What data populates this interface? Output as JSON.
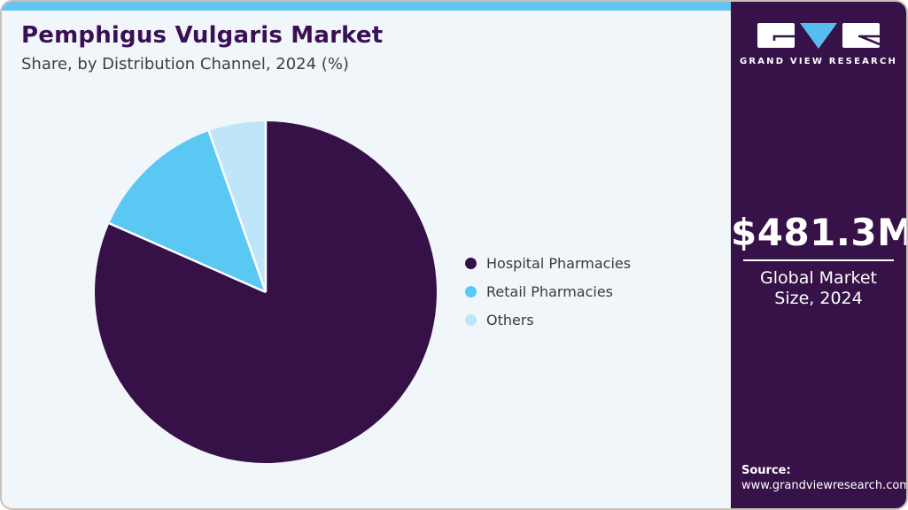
{
  "header": {
    "title": "Pemphigus Vulgaris Market",
    "subtitle": "Share, by Distribution Channel, 2024 (%)"
  },
  "chart_data": {
    "type": "pie",
    "title": "Pemphigus Vulgaris Market Share, by Distribution Channel, 2024 (%)",
    "categories": [
      "Hospital Pharmacies",
      "Retail Pharmacies",
      "Others"
    ],
    "values": [
      81.6,
      13.0,
      5.4
    ],
    "unit": "%",
    "colors": [
      "#361148",
      "#5bc8f4",
      "#bee5f8"
    ],
    "start_angle_deg": 0,
    "direction": "clockwise",
    "legend_position": "right",
    "separator_color": "#ffffff"
  },
  "sidebar": {
    "brand": "GRAND VIEW RESEARCH",
    "market_size": {
      "value": "$481.3M",
      "label": "Global Market Size, 2024"
    },
    "source": {
      "label": "Source:",
      "url": "www.grandviewresearch.com"
    }
  },
  "colors": {
    "topbar": "#64c6f0",
    "title_text": "#3a1054",
    "subtitle_text": "#3f3f3f",
    "legend_text": "#3a3a3a",
    "main_background": "#f1f6fa",
    "sidebar_background": "#371249",
    "sidebar_text": "#ffffff",
    "logo_triangle": "#56bfee",
    "card_border": "#c9c0ba"
  }
}
